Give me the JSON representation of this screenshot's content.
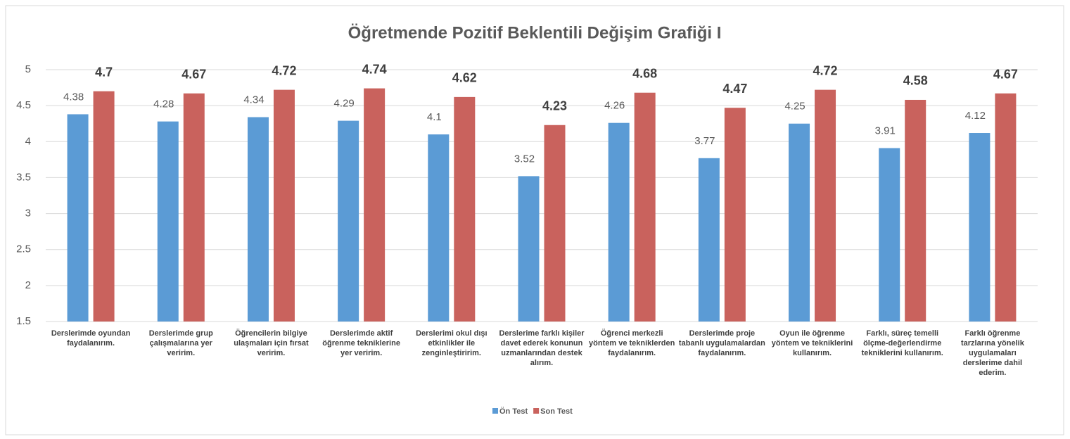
{
  "chart_data": {
    "type": "bar",
    "title": "Öğretmende Pozitif Beklentili Değişim Grafiği I",
    "categories": [
      "Derslerimde oyundan faydalanırım.",
      "Derslerimde grup çalışmalarına yer veririm.",
      "Öğrencilerin bilgiye ulaşmaları için fırsat veririm.",
      "Derslerimde aktif öğrenme tekniklerine yer veririm.",
      "Derslerimi okul dışı etkinlikler ile zenginleştiririm.",
      "Derslerime farklı kişiler davet ederek konunun uzmanlarından destek alırım.",
      "Öğrenci merkezli yöntem ve tekniklerden faydalanırım.",
      "Derslerimde proje tabanlı uygulamalardan faydalanırım.",
      "Oyun ile öğrenme yöntem ve tekniklerini kullanırım.",
      "Farklı, süreç temelli ölçme-değerlendirme tekniklerini kullanırım.",
      "Farklı öğrenme tarzlarına yönelik uygulamaları derslerime dahil ederim."
    ],
    "series": [
      {
        "name": "Ön Test",
        "color": "#5b9bd5",
        "values": [
          4.38,
          4.28,
          4.34,
          4.29,
          4.1,
          3.52,
          4.26,
          3.77,
          4.25,
          3.91,
          4.12
        ]
      },
      {
        "name": "Son Test",
        "color": "#c9625d",
        "values": [
          4.7,
          4.67,
          4.72,
          4.74,
          4.62,
          4.23,
          4.68,
          4.47,
          4.72,
          4.58,
          4.67
        ]
      }
    ],
    "ylim": [
      1.5,
      5
    ],
    "yticks": [
      1.5,
      2,
      2.5,
      3,
      3.5,
      4,
      4.5,
      5
    ],
    "grid": true,
    "legend": "bottom"
  }
}
